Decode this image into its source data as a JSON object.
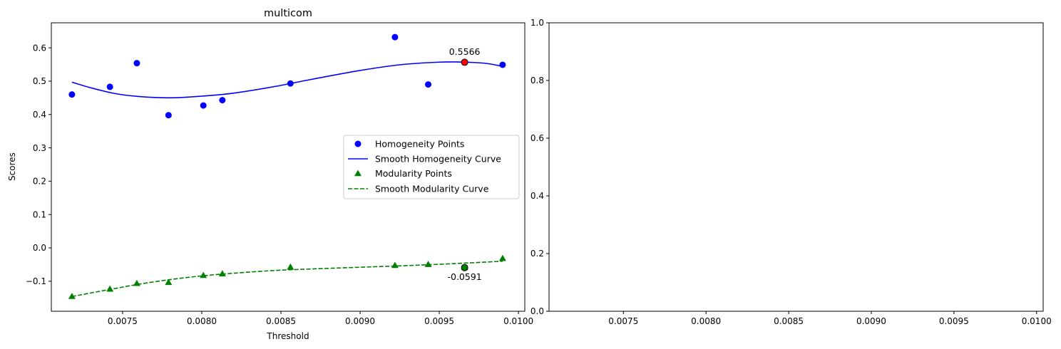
{
  "chart_data": [
    {
      "type": "scatter",
      "title": "multicom",
      "xlabel": "Threshold",
      "ylabel": "Scores",
      "xlim": [
        0.00705,
        0.01004
      ],
      "ylim": [
        -0.19,
        0.675
      ],
      "xticks": [
        0.0075,
        0.008,
        0.0085,
        0.009,
        0.0095,
        0.01
      ],
      "xtick_labels": [
        "0.0075",
        "0.0080",
        "0.0085",
        "0.0090",
        "0.0095",
        "0.0100"
      ],
      "yticks": [
        -0.1,
        0.0,
        0.1,
        0.2,
        0.3,
        0.4,
        0.5,
        0.6
      ],
      "ytick_labels": [
        "−0.1",
        "0.0",
        "0.1",
        "0.2",
        "0.3",
        "0.4",
        "0.5",
        "0.6"
      ],
      "grid": false,
      "legend_position": "center-right",
      "series": [
        {
          "name": "Homogeneity Points",
          "kind": "points",
          "marker": "circle",
          "color": "#0000ff",
          "x": [
            0.00718,
            0.00742,
            0.00759,
            0.00779,
            0.00801,
            0.00813,
            0.00856,
            0.00922,
            0.00943,
            0.00966,
            0.0099
          ],
          "y": [
            0.46,
            0.483,
            0.554,
            0.398,
            0.427,
            0.443,
            0.493,
            0.632,
            0.49,
            0.557,
            0.549
          ]
        },
        {
          "name": "Smooth Homogeneity Curve",
          "kind": "curve",
          "line_style": "solid",
          "color": "#0000ff",
          "x": [
            0.00718,
            0.0073,
            0.00745,
            0.0076,
            0.0078,
            0.008,
            0.0082,
            0.00845,
            0.0087,
            0.009,
            0.00925,
            0.0095,
            0.00966,
            0.0098,
            0.0099
          ],
          "y": [
            0.497,
            0.48,
            0.463,
            0.454,
            0.45,
            0.455,
            0.464,
            0.483,
            0.506,
            0.532,
            0.549,
            0.557,
            0.557,
            0.553,
            0.544
          ]
        },
        {
          "name": "Modularity Points",
          "kind": "points",
          "marker": "triangle",
          "color": "#008000",
          "x": [
            0.00718,
            0.00742,
            0.00759,
            0.00779,
            0.00801,
            0.00813,
            0.00856,
            0.00922,
            0.00943,
            0.00966,
            0.0099
          ],
          "y": [
            -0.146,
            -0.124,
            -0.107,
            -0.104,
            -0.083,
            -0.078,
            -0.058,
            -0.053,
            -0.05,
            -0.059,
            -0.032
          ]
        },
        {
          "name": "Smooth Modularity Curve",
          "kind": "curve",
          "line_style": "dashed",
          "color": "#008000",
          "x": [
            0.00718,
            0.0073,
            0.00745,
            0.0076,
            0.0078,
            0.008,
            0.0082,
            0.00845,
            0.0087,
            0.009,
            0.0093,
            0.0096,
            0.0099
          ],
          "y": [
            -0.146,
            -0.135,
            -0.122,
            -0.109,
            -0.095,
            -0.084,
            -0.076,
            -0.068,
            -0.063,
            -0.058,
            -0.053,
            -0.047,
            -0.04
          ]
        }
      ],
      "highlights": [
        {
          "x": 0.00966,
          "y": 0.5566,
          "label": "0.5566",
          "color": "#ff0000",
          "label_position": "above"
        },
        {
          "x": 0.00966,
          "y": -0.0591,
          "label": "-0.0591",
          "color": "#008000",
          "label_position": "below"
        }
      ]
    },
    {
      "type": "line",
      "title": "",
      "xlabel": "",
      "ylabel": "",
      "xlim": [
        0.00705,
        0.01004
      ],
      "ylim": [
        0.0,
        1.0
      ],
      "xticks": [
        0.0075,
        0.008,
        0.0085,
        0.009,
        0.0095,
        0.01
      ],
      "xtick_labels": [
        "0.0075",
        "0.0080",
        "0.0085",
        "0.0090",
        "0.0095",
        "0.0100"
      ],
      "yticks": [
        0.0,
        0.2,
        0.4,
        0.6,
        0.8,
        1.0
      ],
      "ytick_labels": [
        "0.0",
        "0.2",
        "0.4",
        "0.6",
        "0.8",
        "1.0"
      ],
      "grid": false,
      "series": []
    }
  ]
}
